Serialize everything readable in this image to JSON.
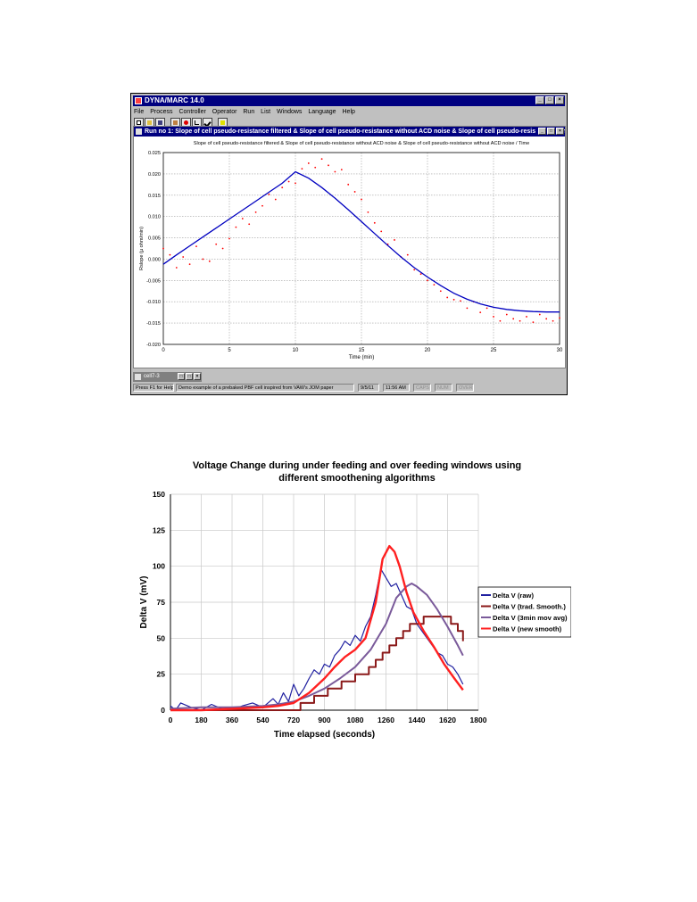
{
  "window": {
    "title": "DYNA/MARC 14.0",
    "controls": [
      "_",
      "□",
      "×"
    ],
    "menu": [
      "File",
      "Process",
      "Controller",
      "Operator",
      "Run",
      "List",
      "Windows",
      "Language",
      "Help"
    ],
    "child_title": "Run no 1: Slope of cell pseudo-resistance filtered & Slope of cell pseudo-resistance without ACD noise & Slope of cell pseudo-resistance without ACD noise / Time",
    "minimized_title": "cell7-3",
    "status": {
      "help": "Press F1 for Help",
      "message": "Demo example of a prebaked PBF cell inspired from VAW's JOM paper",
      "date": "9/5/11",
      "time": "11:56 AM",
      "caps": "CAPS",
      "num": "NUM",
      "ovr": "OVER"
    }
  },
  "chart_data": [
    {
      "type": "line",
      "title": "Slope of cell pseudo-resistance filtered & Slope of cell pseudo-resistance without ACD noise & Slope of cell pseudo-resistance without ACD noise / Time",
      "xlabel": "Time (min)",
      "ylabel": "Rslope (µ ohm/min)",
      "xlim": [
        0,
        30
      ],
      "ylim": [
        -0.02,
        0.025
      ],
      "xticks": [
        0,
        5,
        10,
        15,
        20,
        25,
        30
      ],
      "yticks": [
        "0.025",
        "0.020",
        "0.015",
        "0.010",
        "0.005",
        "0.000",
        "-0.005",
        "-0.010",
        "-0.015",
        "-0.020"
      ],
      "grid": true,
      "colors": {
        "smooth": "#0000c0",
        "noisy": "#ff0000"
      },
      "series": [
        {
          "style": "solid",
          "x": [
            0,
            1,
            2,
            3,
            4,
            5,
            6,
            7,
            8,
            9,
            10,
            11,
            12,
            13,
            14,
            15,
            16,
            17,
            18,
            19,
            20,
            21,
            22,
            23,
            24,
            25,
            26,
            27,
            28,
            29,
            30
          ],
          "values": [
            -0.0012,
            0.001,
            0.0031,
            0.0052,
            0.0073,
            0.0094,
            0.0115,
            0.0136,
            0.0157,
            0.0178,
            0.0205,
            0.019,
            0.0168,
            0.0143,
            0.0116,
            0.0088,
            0.006,
            0.0032,
            0.0005,
            -0.002,
            -0.0042,
            -0.0062,
            -0.008,
            -0.0094,
            -0.0105,
            -0.0113,
            -0.0118,
            -0.0121,
            -0.0123,
            -0.0124,
            -0.0124
          ]
        },
        {
          "style": "dotted",
          "x": [
            0,
            0.5,
            1,
            1.5,
            2,
            2.5,
            3,
            3.5,
            4,
            4.5,
            5,
            5.5,
            6,
            6.5,
            7,
            7.5,
            8,
            8.5,
            9,
            9.5,
            10,
            10.5,
            11,
            11.5,
            12,
            12.5,
            13,
            13.5,
            14,
            14.5,
            15,
            15.5,
            16,
            16.5,
            17,
            17.5,
            18,
            18.5,
            19,
            19.5,
            20,
            20.5,
            21,
            21.5,
            22,
            22.5,
            23,
            23.5,
            24,
            24.5,
            25,
            25.5,
            26,
            26.5,
            27,
            27.5,
            28,
            28.5,
            29,
            29.5,
            30
          ],
          "values": [
            0.0025,
            0.001,
            -0.002,
            0.0005,
            -0.0012,
            0.003,
            0.0,
            -0.0005,
            0.0035,
            0.0025,
            0.0048,
            0.0075,
            0.0095,
            0.0082,
            0.011,
            0.0125,
            0.0152,
            0.014,
            0.0168,
            0.0182,
            0.0178,
            0.0212,
            0.0225,
            0.0215,
            0.0235,
            0.022,
            0.0205,
            0.021,
            0.0175,
            0.0158,
            0.014,
            0.011,
            0.0085,
            0.0065,
            0.0035,
            0.0045,
            0.0005,
            0.001,
            -0.0025,
            -0.0035,
            -0.005,
            -0.006,
            -0.0075,
            -0.009,
            -0.0095,
            -0.0098,
            -0.0115,
            -0.01,
            -0.0125,
            -0.0115,
            -0.0135,
            -0.0145,
            -0.013,
            -0.014,
            -0.0145,
            -0.0135,
            -0.0148,
            -0.013,
            -0.014,
            -0.0145,
            -0.0138
          ]
        }
      ]
    },
    {
      "type": "line",
      "title": "Voltage Change during under feeding and over feeding windows using different smoothening algorithms",
      "xlabel": "Time elapsed (seconds)",
      "ylabel": "Delta V (mV)",
      "xlim": [
        0,
        1800
      ],
      "ylim": [
        0,
        150
      ],
      "xticks": [
        0,
        180,
        360,
        540,
        720,
        900,
        1080,
        1260,
        1440,
        1620,
        1800
      ],
      "yticks": [
        0,
        25,
        50,
        75,
        100,
        125,
        150
      ],
      "grid": true,
      "legend_position": "right",
      "series": [
        {
          "name": "Delta V (raw)",
          "color": "#2020a0",
          "x": [
            0,
            30,
            60,
            120,
            180,
            240,
            300,
            360,
            420,
            480,
            540,
            600,
            630,
            660,
            690,
            720,
            750,
            780,
            810,
            840,
            870,
            900,
            930,
            960,
            990,
            1020,
            1050,
            1080,
            1110,
            1140,
            1170,
            1200,
            1230,
            1260,
            1290,
            1320,
            1350,
            1380,
            1410,
            1440,
            1470,
            1500,
            1530,
            1560,
            1590,
            1620,
            1650,
            1680,
            1710
          ],
          "values": [
            3,
            0,
            5,
            2,
            0,
            4,
            1,
            0,
            3,
            5,
            2,
            8,
            4,
            12,
            6,
            18,
            10,
            15,
            22,
            28,
            25,
            32,
            30,
            38,
            42,
            48,
            45,
            52,
            48,
            58,
            65,
            80,
            98,
            92,
            86,
            88,
            80,
            72,
            70,
            60,
            55,
            50,
            45,
            40,
            38,
            32,
            30,
            25,
            18
          ]
        },
        {
          "name": "Delta V (trad. Smooth.)",
          "color": "#8b1a1a",
          "x": [
            0,
            720,
            760,
            800,
            840,
            880,
            920,
            960,
            1000,
            1040,
            1080,
            1120,
            1160,
            1200,
            1240,
            1280,
            1320,
            1360,
            1400,
            1440,
            1480,
            1520,
            1560,
            1600,
            1640,
            1680,
            1710
          ],
          "values": [
            0,
            0,
            5,
            5,
            10,
            10,
            15,
            15,
            20,
            20,
            25,
            25,
            30,
            35,
            40,
            45,
            50,
            55,
            60,
            60,
            65,
            65,
            65,
            65,
            60,
            55,
            48
          ]
        },
        {
          "name": "Delta V (3min mov avg)",
          "color": "#7a5a9a",
          "x": [
            0,
            180,
            360,
            540,
            630,
            720,
            810,
            900,
            990,
            1080,
            1170,
            1260,
            1320,
            1380,
            1410,
            1440,
            1500,
            1560,
            1620,
            1680,
            1710
          ],
          "values": [
            1,
            2,
            2,
            3,
            4,
            6,
            10,
            15,
            22,
            30,
            42,
            60,
            78,
            86,
            88,
            86,
            80,
            70,
            58,
            45,
            38
          ]
        },
        {
          "name": "Delta V (new smooth)",
          "color": "#ff2020",
          "x": [
            0,
            180,
            360,
            540,
            630,
            720,
            810,
            900,
            960,
            1020,
            1080,
            1140,
            1200,
            1240,
            1280,
            1310,
            1340,
            1380,
            1420,
            1480,
            1540,
            1600,
            1660,
            1710
          ],
          "values": [
            0,
            0,
            1,
            2,
            3,
            5,
            12,
            22,
            30,
            37,
            42,
            50,
            75,
            105,
            114,
            110,
            100,
            82,
            68,
            55,
            44,
            32,
            22,
            14
          ]
        }
      ]
    }
  ]
}
